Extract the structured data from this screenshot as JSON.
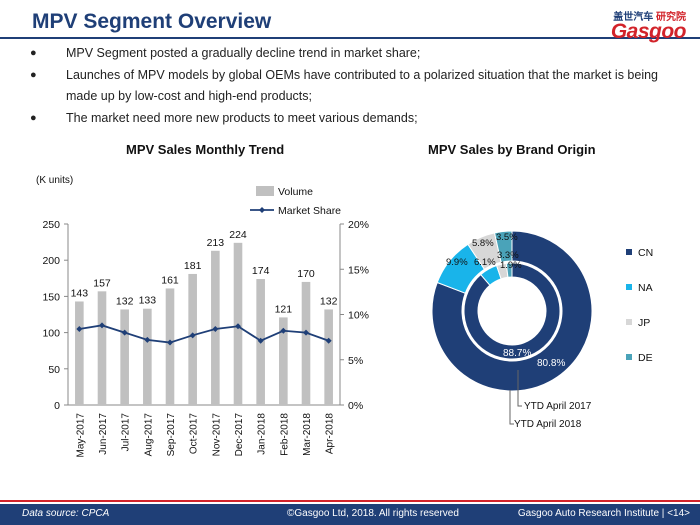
{
  "slide": {
    "title": "MPV Segment Overview",
    "logo_cn_blue": "盖世汽车",
    "logo_cn_red": "研究院",
    "logo_word": "Gasgoo",
    "bullets": [
      "MPV Segment posted a gradually decline trend in market share;",
      "Launches of MPV models by global OEMs have contributed to a polarized situation that the market is being made up by low-cost and high-end products;",
      "The market need more new products to meet various demands;"
    ],
    "footer": {
      "source": "Data source: CPCA",
      "copyright": "©Gasgoo Ltd, 2018. All rights reserved",
      "institute": "Gasgoo Auto Research Institute",
      "page": "<14>"
    }
  },
  "colors": {
    "brand_blue": "#1f3f77",
    "brand_red": "#d2232a",
    "bar_gray": "#c0c0c0",
    "line_blue": "#1f3f77",
    "cn": "#1f3f77",
    "na": "#19b4ea",
    "jp": "#d7d7d7",
    "de": "#4aa3b9"
  },
  "chart_data": [
    {
      "type": "bar",
      "title": "MPV Sales Monthly Trend",
      "ylabel_left": "(K units)",
      "categories": [
        "May-2017",
        "Jun-2017",
        "Jul-2017",
        "Aug-2017",
        "Sep-2017",
        "Oct-2017",
        "Nov-2017",
        "Dec-2017",
        "Jan-2018",
        "Feb-2018",
        "Mar-2018",
        "Apr-2018"
      ],
      "series": [
        {
          "name": "Volume",
          "type": "bar",
          "axis": "left",
          "values": [
            143,
            157,
            132,
            133,
            161,
            181,
            213,
            224,
            174,
            121,
            170,
            132
          ]
        },
        {
          "name": "Market Share",
          "type": "line",
          "axis": "right",
          "values": [
            8.4,
            8.8,
            8.0,
            7.2,
            6.9,
            7.7,
            8.4,
            8.7,
            7.1,
            8.2,
            8.0,
            7.1
          ]
        }
      ],
      "y_left": {
        "min": 0,
        "max": 250,
        "ticks": [
          "0",
          "50",
          "100",
          "150",
          "200",
          "250"
        ]
      },
      "y_right": {
        "min": 0,
        "max": 20,
        "ticks": [
          "0%",
          "5%",
          "10%",
          "15%",
          "20%"
        ]
      },
      "legend_position": "top-right",
      "grid": false
    },
    {
      "type": "pie",
      "subtype": "double-donut",
      "title": "MPV Sales by Brand Origin",
      "categories": [
        "CN",
        "NA",
        "JP",
        "DE"
      ],
      "rings": [
        {
          "name": "YTD April 2018",
          "ring": "outer",
          "values": [
            80.8,
            9.9,
            5.8,
            3.5
          ],
          "labels": [
            "80.8%",
            "9.9%",
            "5.8%",
            "3.5%"
          ]
        },
        {
          "name": "YTD April 2017",
          "ring": "inner",
          "values": [
            88.7,
            6.1,
            3.3,
            1.9
          ],
          "labels": [
            "88.7%",
            "6.1%",
            "3.3%",
            "1.9%"
          ]
        }
      ],
      "legend_position": "right"
    }
  ]
}
